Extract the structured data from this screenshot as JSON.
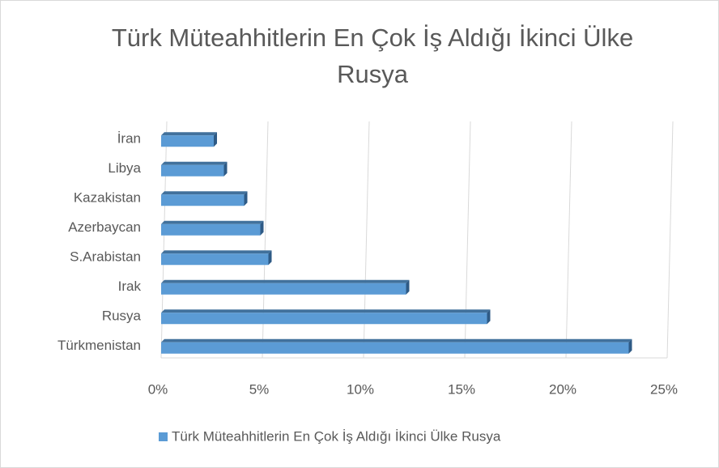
{
  "chart_data": {
    "type": "bar",
    "orientation": "horizontal",
    "title": "Türk Müteahhitlerin En Çok İş Aldığı İkinci Ülke Rusya",
    "categories": [
      "İran",
      "Libya",
      "Kazakistan",
      "Azerbaycan",
      "S.Arabistan",
      "Irak",
      "Rusya",
      "Türkmenistan"
    ],
    "series": [
      {
        "name": "Türk Müteahhitlerin En Çok İş Aldığı İkinci Ülke Rusya",
        "color": "#5b9bd5",
        "values": [
          2.6,
          3.1,
          4.1,
          4.9,
          5.3,
          12.1,
          16.1,
          23.1
        ]
      }
    ],
    "xlim": [
      0,
      25
    ],
    "xticks": [
      {
        "value": 0,
        "label": "0%"
      },
      {
        "value": 5,
        "label": "5%"
      },
      {
        "value": 10,
        "label": "10%"
      },
      {
        "value": 15,
        "label": "15%"
      },
      {
        "value": 20,
        "label": "20%"
      },
      {
        "value": 25,
        "label": "25%"
      }
    ],
    "grid": true,
    "legend": "bottom"
  }
}
